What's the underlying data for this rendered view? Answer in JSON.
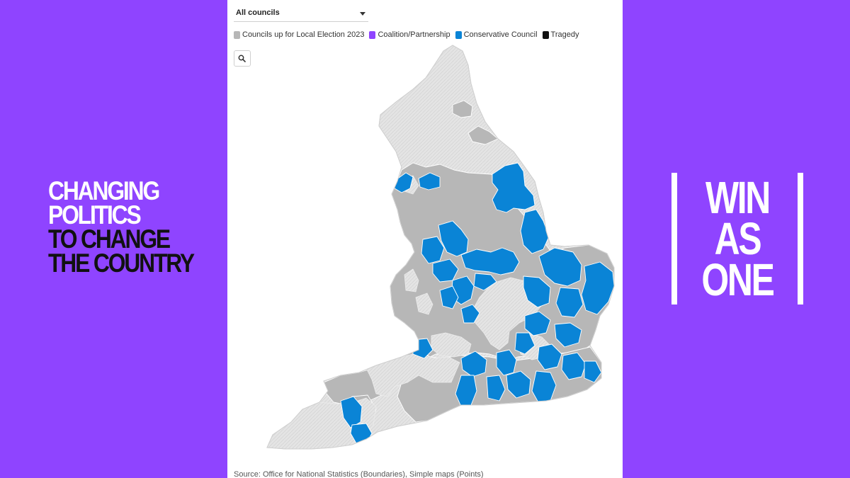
{
  "left_slogan": {
    "line1": "CHANGING",
    "line2": "POLITICS",
    "line3": "TO CHANGE",
    "line4": "THE COUNTRY"
  },
  "right_slogan": {
    "line1": "WIN",
    "line2": "AS",
    "line3": "ONE"
  },
  "panel": {
    "dropdown_value": "All councils",
    "legend": [
      {
        "label": "Councils up for Local Election 2023",
        "color": "#b7b7b7"
      },
      {
        "label": "Coalition/Partnership",
        "color": "#8f44ff"
      },
      {
        "label": "Conservative Council",
        "color": "#0a84d6"
      },
      {
        "label": "Tragedy",
        "color": "#111111"
      }
    ],
    "zoom_icon": "search-icon",
    "source": "Source: Office for National Statistics (Boundaries), Simple maps (Points)"
  },
  "colors": {
    "background": "#8f44ff",
    "not_up": "#e2e2e2",
    "up": "#b7b7b7",
    "conservative": "#0a84d6"
  }
}
